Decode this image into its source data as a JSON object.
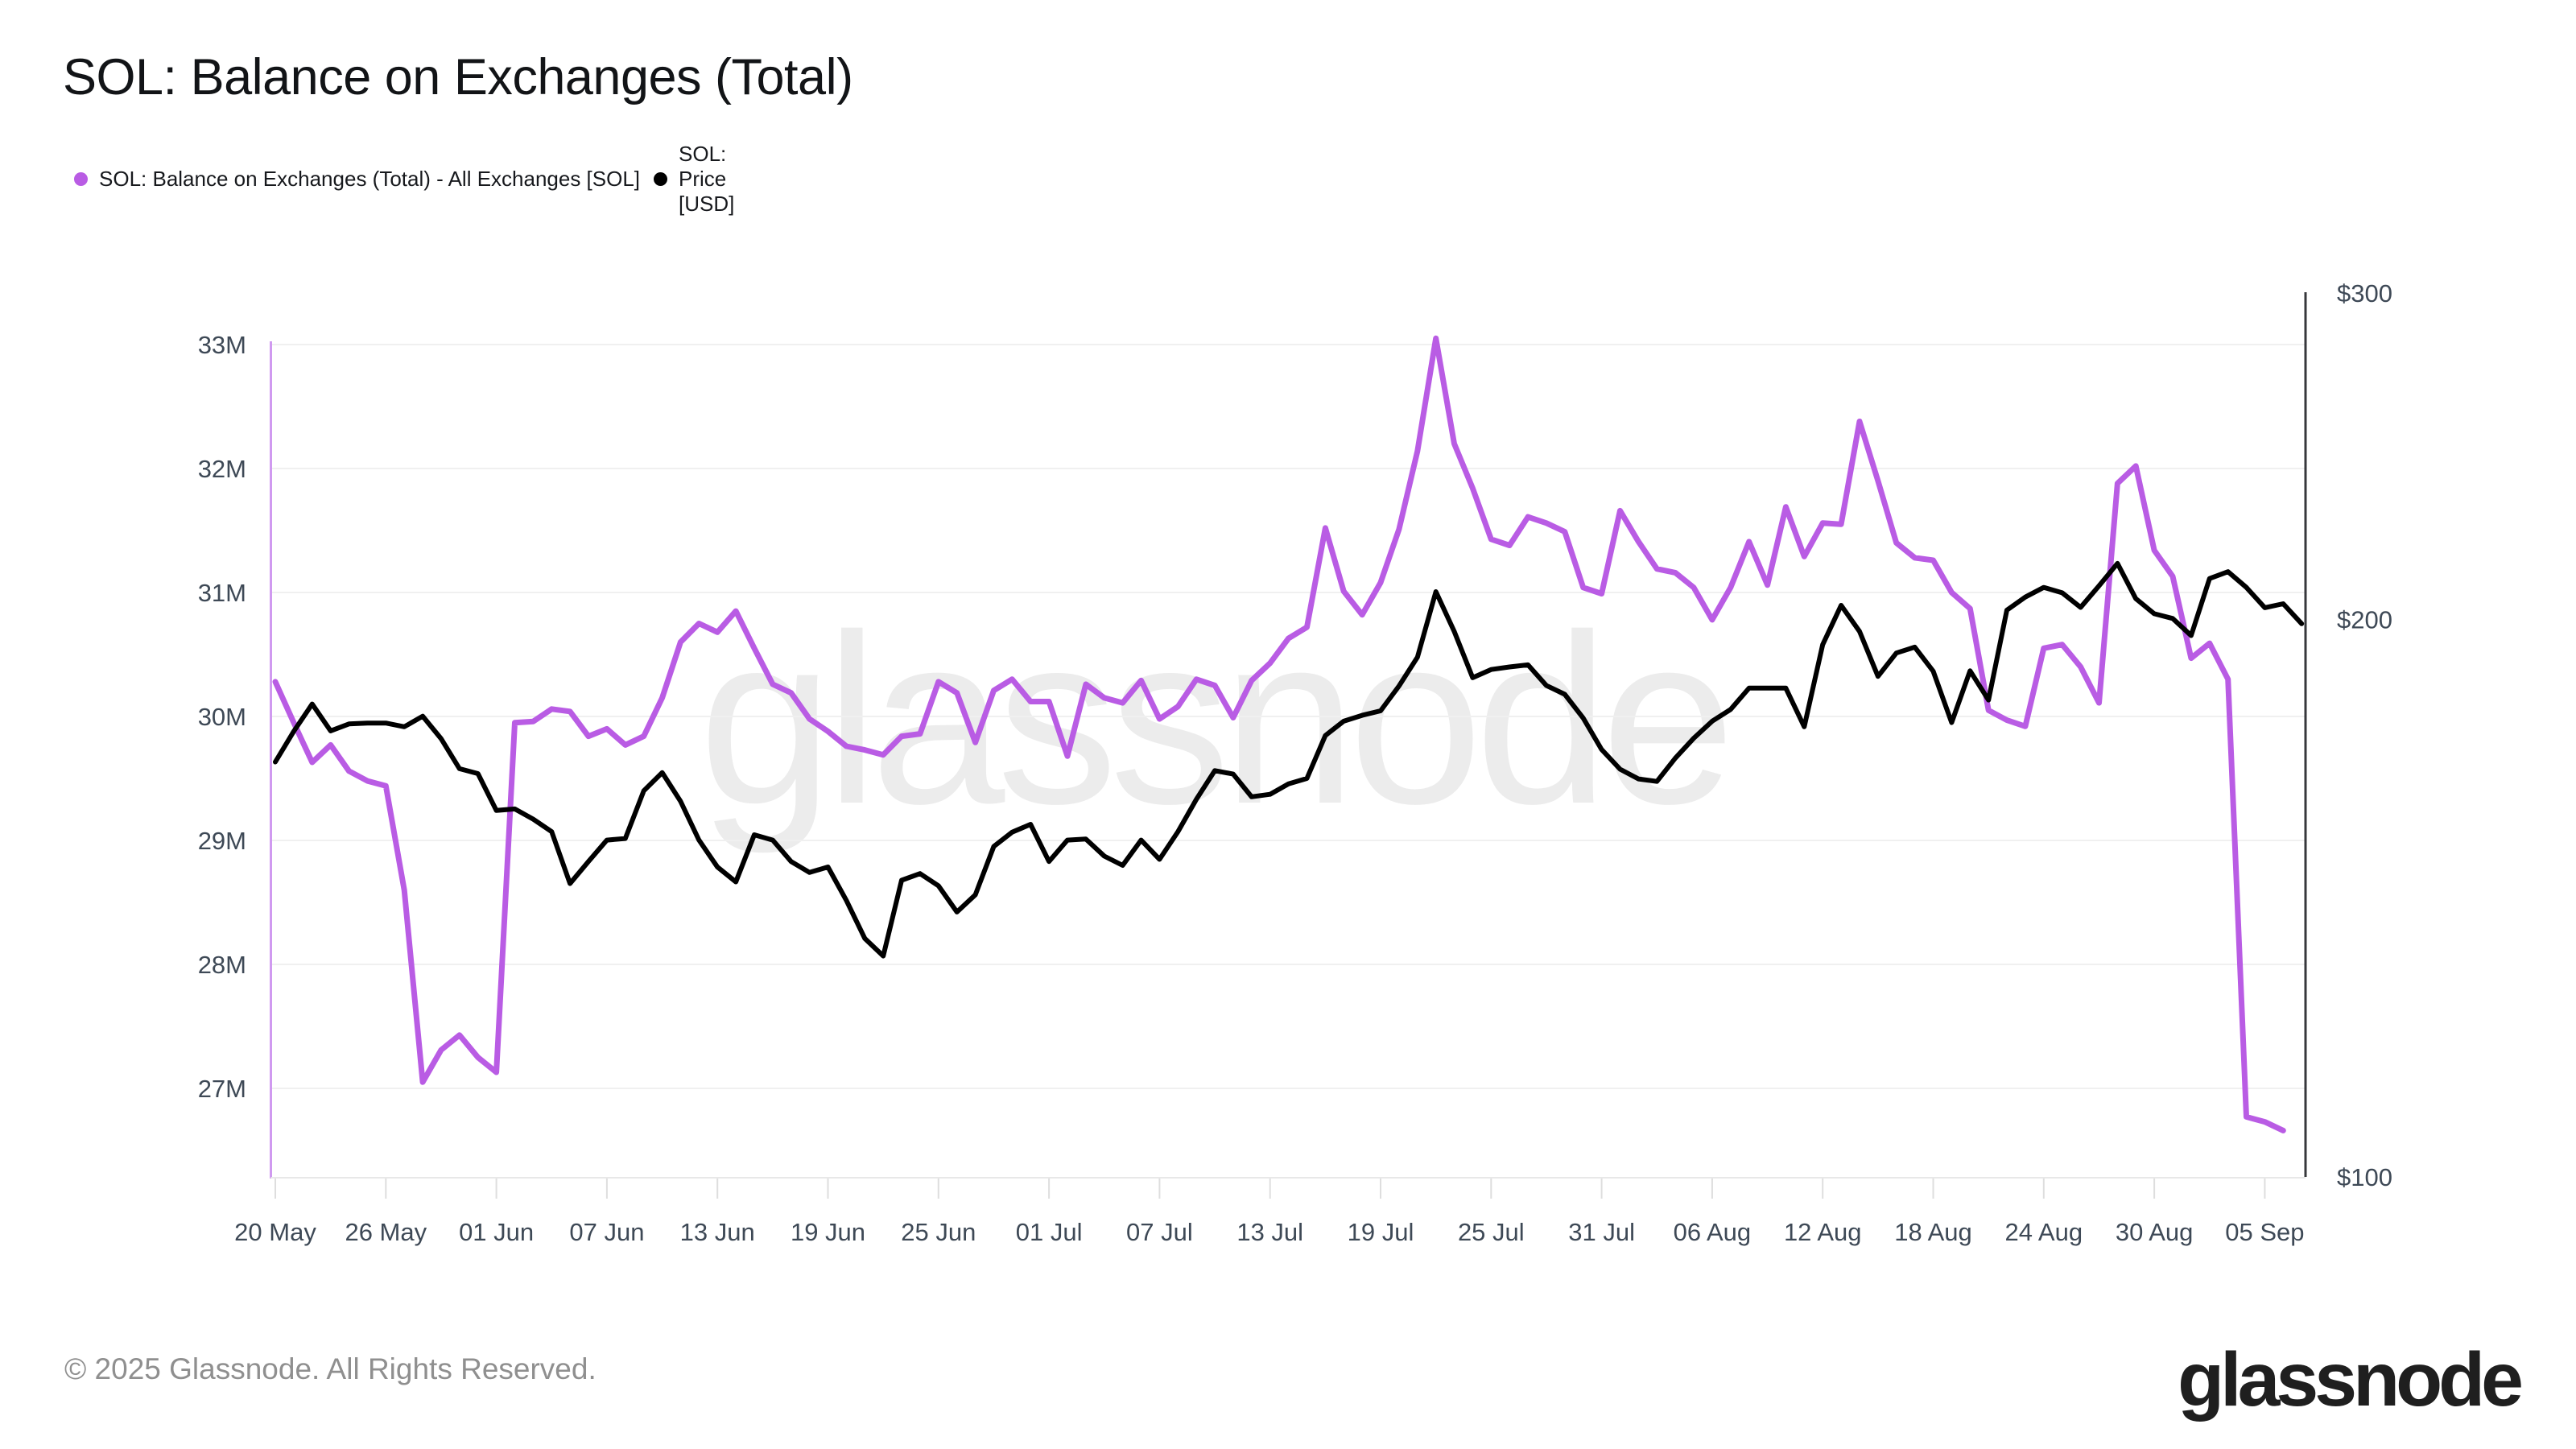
{
  "header": {
    "title": "SOL: Balance on Exchanges (Total)"
  },
  "legend": {
    "items": [
      {
        "label": "SOL: Balance on Exchanges (Total) - All Exchanges [SOL]",
        "color": "#b95ce4"
      },
      {
        "label": "SOL: Price [USD]",
        "color": "#000000"
      }
    ]
  },
  "watermark": {
    "text": "glassnode"
  },
  "footer": {
    "copyright": "© 2025 Glassnode. All Rights Reserved.",
    "logo_text": "glassnode"
  },
  "colors": {
    "balance_line": "#b95ce4",
    "price_line": "#000000",
    "left_axis_line": "#d09af0",
    "right_axis_line": "#37383c",
    "gridline": "#f0f0f0",
    "bottom_axis_line": "#e8e8e8",
    "tick_mark": "#dedede",
    "tick_text": "#3e4956",
    "watermark": "#ececec"
  },
  "chart_data": {
    "type": "line",
    "title": "SOL: Balance on Exchanges (Total)",
    "start_date": "2025-05-20",
    "n_days": 111,
    "x_ticks": [
      {
        "label": "20 May",
        "day_index": 0
      },
      {
        "label": "26 May",
        "day_index": 6
      },
      {
        "label": "01 Jun",
        "day_index": 12
      },
      {
        "label": "07 Jun",
        "day_index": 18
      },
      {
        "label": "13 Jun",
        "day_index": 24
      },
      {
        "label": "19 Jun",
        "day_index": 30
      },
      {
        "label": "25 Jun",
        "day_index": 36
      },
      {
        "label": "01 Jul",
        "day_index": 42
      },
      {
        "label": "07 Jul",
        "day_index": 48
      },
      {
        "label": "13 Jul",
        "day_index": 54
      },
      {
        "label": "19 Jul",
        "day_index": 60
      },
      {
        "label": "25 Jul",
        "day_index": 66
      },
      {
        "label": "31 Jul",
        "day_index": 72
      },
      {
        "label": "06 Aug",
        "day_index": 78
      },
      {
        "label": "12 Aug",
        "day_index": 84
      },
      {
        "label": "18 Aug",
        "day_index": 90
      },
      {
        "label": "24 Aug",
        "day_index": 96
      },
      {
        "label": "30 Aug",
        "day_index": 102
      },
      {
        "label": "05 Sep",
        "day_index": 108
      }
    ],
    "y_left": {
      "unit": "SOL (millions)",
      "scale": "linear",
      "ylim": [
        26.3,
        33.05
      ],
      "ticks": [
        {
          "label": "33M",
          "value": 33
        },
        {
          "label": "32M",
          "value": 32
        },
        {
          "label": "31M",
          "value": 31
        },
        {
          "label": "30M",
          "value": 30
        },
        {
          "label": "29M",
          "value": 29
        },
        {
          "label": "28M",
          "value": 28
        },
        {
          "label": "27M",
          "value": 27
        }
      ]
    },
    "y_right": {
      "unit": "USD",
      "scale": "log",
      "ylim": [
        100,
        300
      ],
      "ticks": [
        {
          "label": "$300",
          "value": 300
        },
        {
          "label": "$200",
          "value": 200
        },
        {
          "label": "$100",
          "value": 100
        }
      ]
    },
    "series": [
      {
        "name": "SOL: Balance on Exchanges (Total) - All Exchanges [SOL]",
        "axis": "left",
        "unit": "millions of SOL",
        "color": "#b95ce4",
        "values": [
          30.28,
          29.95,
          29.63,
          29.77,
          29.56,
          29.48,
          29.44,
          28.6,
          27.05,
          27.31,
          27.43,
          27.25,
          27.13,
          29.95,
          29.96,
          30.06,
          30.04,
          29.84,
          29.9,
          29.77,
          29.84,
          30.15,
          30.6,
          30.75,
          30.68,
          30.85,
          30.55,
          30.26,
          30.19,
          29.98,
          29.88,
          29.76,
          29.73,
          29.69,
          29.84,
          29.86,
          30.28,
          30.19,
          29.79,
          30.21,
          30.3,
          30.12,
          30.12,
          29.68,
          30.26,
          30.15,
          30.11,
          30.29,
          29.98,
          30.08,
          30.3,
          30.25,
          29.99,
          30.29,
          30.43,
          30.63,
          30.72,
          31.52,
          31.01,
          30.82,
          31.08,
          31.51,
          32.14,
          33.05,
          32.2,
          31.84,
          31.43,
          31.38,
          31.61,
          31.56,
          31.49,
          31.04,
          30.99,
          31.66,
          31.41,
          31.19,
          31.16,
          31.04,
          30.78,
          31.04,
          31.41,
          31.06,
          31.69,
          31.29,
          31.56,
          31.55,
          32.38,
          31.9,
          31.4,
          31.28,
          31.26,
          31.0,
          30.87,
          30.05,
          29.97,
          29.92,
          30.55,
          30.58,
          30.4,
          30.11,
          31.88,
          32.02,
          31.34,
          31.13,
          30.47,
          30.59,
          30.3,
          26.77,
          26.73,
          26.66,
          null
        ]
      },
      {
        "name": "SOL: Price [USD]",
        "axis": "right",
        "unit": "USD",
        "color": "#000000",
        "values": [
          167.5,
          174.0,
          180.0,
          174.1,
          175.6,
          175.8,
          175.8,
          175.0,
          177.3,
          172.4,
          166.1,
          165.1,
          157.7,
          158.0,
          156.0,
          153.6,
          144.0,
          148.0,
          152.0,
          152.3,
          161.6,
          165.3,
          159.5,
          152.0,
          147.0,
          144.3,
          153.0,
          152.0,
          148.0,
          146.0,
          147.0,
          141.0,
          134.5,
          131.6,
          144.6,
          145.8,
          143.6,
          139.0,
          142.0,
          150.8,
          153.5,
          155.0,
          148.0,
          152.0,
          152.2,
          149.0,
          147.3,
          152.0,
          148.4,
          153.6,
          159.9,
          165.7,
          165.0,
          160.4,
          160.9,
          163.0,
          164.1,
          173.1,
          176.2,
          177.5,
          178.5,
          184.1,
          190.8,
          207.0,
          197.0,
          186.0,
          187.9,
          188.5,
          189.0,
          184.2,
          182.2,
          176.9,
          170.1,
          166.0,
          164.0,
          163.5,
          168.3,
          172.5,
          176.2,
          178.8,
          183.6,
          183.6,
          183.6,
          175.0,
          193.8,
          203.5,
          197.0,
          186.3,
          191.8,
          193.2,
          187.5,
          175.9,
          187.6,
          180.9,
          202.3,
          205.6,
          208.1,
          206.7,
          203.0,
          208.5,
          214.4,
          205.2,
          201.4,
          200.2,
          196.0,
          210.4,
          212.2,
          208.1,
          202.9,
          203.9,
          198.9
        ]
      }
    ],
    "grid": "horizontal-only",
    "legend_position": "top-left"
  }
}
